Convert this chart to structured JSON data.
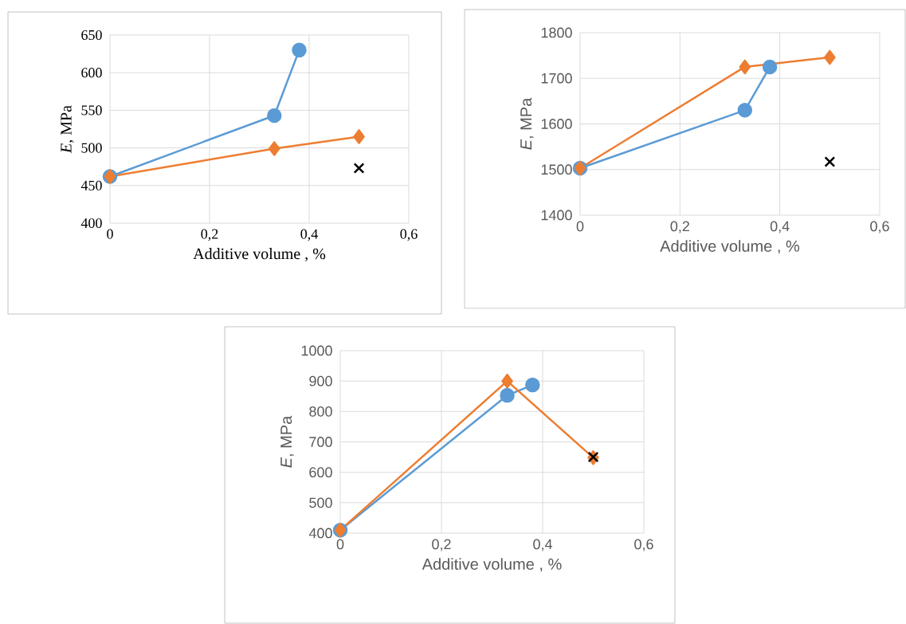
{
  "chart_data": [
    {
      "type": "line",
      "xlabel": "Additive volume , %",
      "ylabel": "*E*, MPa",
      "xlim": [
        0,
        0.6
      ],
      "ylim": [
        400,
        650
      ],
      "xticks": [
        0,
        {
          "value": 0.2,
          "label": "0,2"
        },
        {
          "value": 0.4,
          "label": "0,4"
        },
        {
          "value": 0.6,
          "label": "0,6"
        }
      ],
      "yticks": [
        400,
        450,
        500,
        550,
        600,
        650
      ],
      "grid": true,
      "series": [
        {
          "color": "#5b9bd5",
          "marker": "circle",
          "x": [
            0,
            0.33,
            0.38
          ],
          "values": [
            462,
            543,
            630
          ]
        },
        {
          "color": "#ed7d31",
          "marker": "diamond",
          "x": [
            0,
            0.33,
            0.5
          ],
          "values": [
            462,
            499,
            515
          ]
        },
        {
          "type": "scatter",
          "color": "#000000",
          "marker": "cross",
          "x": [
            0.5
          ],
          "values": [
            473
          ]
        }
      ]
    },
    {
      "type": "line",
      "xlabel": "Additive volume , %",
      "ylabel": "*E*, MPa",
      "xlim": [
        0,
        0.6
      ],
      "ylim": [
        1400,
        1800
      ],
      "xticks": [
        0,
        {
          "value": 0.2,
          "label": "0,2"
        },
        {
          "value": 0.4,
          "label": "0,4"
        },
        {
          "value": 0.6,
          "label": "0,6"
        }
      ],
      "yticks": [
        1400,
        1500,
        1600,
        1700,
        1800
      ],
      "grid": true,
      "series": [
        {
          "color": "#5b9bd5",
          "marker": "circle",
          "x": [
            0,
            0.33,
            0.38
          ],
          "values": [
            1503,
            1630,
            1725
          ]
        },
        {
          "color": "#ed7d31",
          "marker": "diamond",
          "x": [
            0,
            0.33,
            0.5
          ],
          "values": [
            1503,
            1725,
            1746
          ]
        },
        {
          "type": "scatter",
          "color": "#000000",
          "marker": "cross",
          "x": [
            0.5
          ],
          "values": [
            1517
          ]
        }
      ]
    },
    {
      "type": "line",
      "xlabel": "Additive volume , %",
      "ylabel": "*E*, MPa",
      "xlim": [
        0,
        0.6
      ],
      "ylim": [
        400,
        1000
      ],
      "xticks": [
        0,
        {
          "value": 0.2,
          "label": "0,2"
        },
        {
          "value": 0.4,
          "label": "0,4"
        },
        {
          "value": 0.6,
          "label": "0,6"
        }
      ],
      "yticks": [
        400,
        500,
        600,
        700,
        800,
        900,
        1000
      ],
      "grid": true,
      "series": [
        {
          "color": "#5b9bd5",
          "marker": "circle",
          "x": [
            0,
            0.33,
            0.38
          ],
          "values": [
            410,
            853,
            887
          ]
        },
        {
          "color": "#ed7d31",
          "marker": "diamond",
          "x": [
            0,
            0.33,
            0.5
          ],
          "values": [
            410,
            900,
            648
          ]
        },
        {
          "type": "scatter",
          "color": "#000000",
          "marker": "cross",
          "x": [
            0.5
          ],
          "values": [
            650
          ]
        }
      ]
    }
  ]
}
